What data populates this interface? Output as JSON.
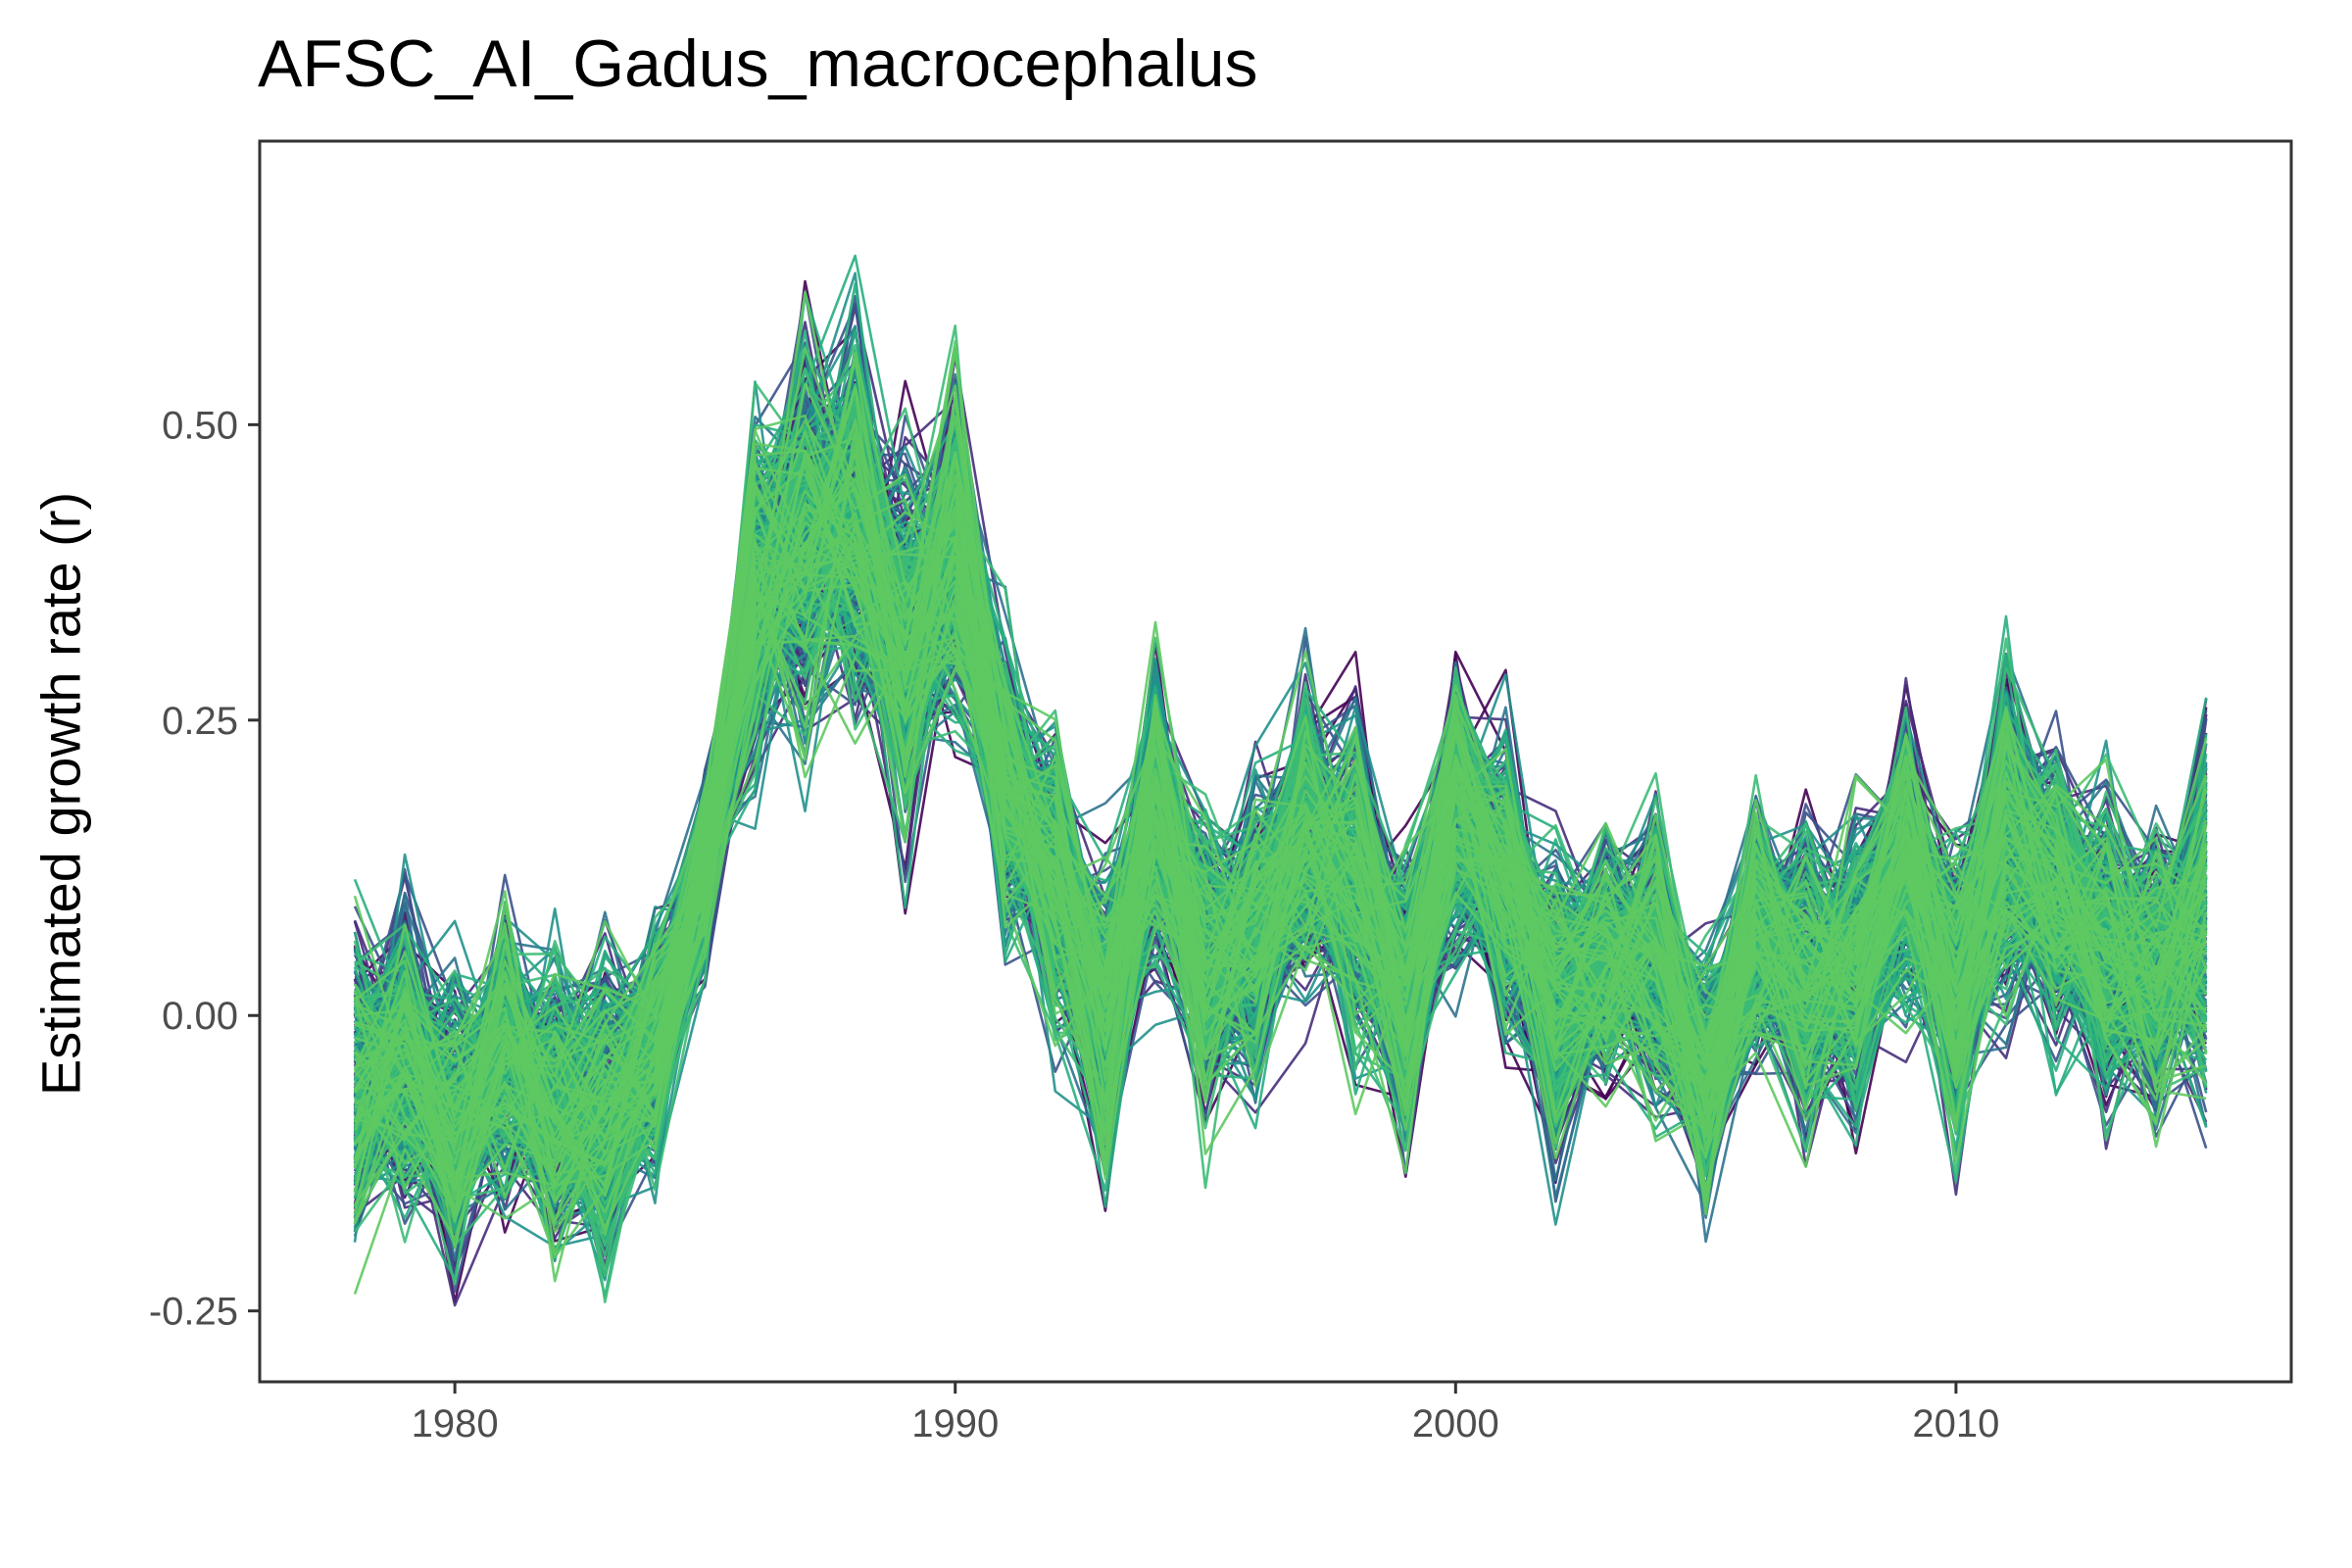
{
  "chart_data": {
    "type": "line",
    "title": "AFSC_AI_Gadus_macrocephalus",
    "xlabel": "",
    "ylabel": "Estimated growth rate (r)",
    "xlim": [
      1976.1,
      2016.7
    ],
    "ylim": [
      -0.31,
      0.74
    ],
    "x_ticks": [
      1980,
      1990,
      2000,
      2010
    ],
    "x_tick_labels": [
      "1980",
      "1990",
      "2000",
      "2010"
    ],
    "y_ticks": [
      -0.25,
      0,
      0.25,
      0.5
    ],
    "y_tick_labels": [
      "-0.25",
      "0.00",
      "0.25",
      "0.50"
    ],
    "grid": false,
    "legend": "none",
    "x": [
      1978,
      1979,
      1980,
      1981,
      1982,
      1983,
      1984,
      1985,
      1986,
      1987,
      1988,
      1989,
      1990,
      1991,
      1992,
      1993,
      1994,
      1995,
      1996,
      1997,
      1998,
      1999,
      2000,
      2001,
      2002,
      2003,
      2004,
      2005,
      2006,
      2007,
      2008,
      2009,
      2010,
      2011,
      2012,
      2013,
      2014,
      2015
    ],
    "mean_trajectory": [
      -0.06,
      -0.04,
      -0.09,
      -0.03,
      -0.08,
      -0.08,
      -0.03,
      0.12,
      0.36,
      0.4,
      0.42,
      0.31,
      0.4,
      0.19,
      0.11,
      0.0,
      0.17,
      0.04,
      0.06,
      0.15,
      0.12,
      0.02,
      0.17,
      0.11,
      0.01,
      0.05,
      0.05,
      -0.06,
      0.07,
      0.03,
      0.04,
      0.13,
      0.02,
      0.15,
      0.1,
      0.06,
      0.03,
      0.08
    ],
    "spread": [
      0.06,
      0.06,
      0.06,
      0.06,
      0.06,
      0.06,
      0.05,
      0.04,
      0.07,
      0.08,
      0.09,
      0.08,
      0.07,
      0.06,
      0.06,
      0.06,
      0.06,
      0.06,
      0.06,
      0.06,
      0.07,
      0.06,
      0.06,
      0.06,
      0.06,
      0.05,
      0.06,
      0.05,
      0.05,
      0.06,
      0.06,
      0.06,
      0.06,
      0.07,
      0.06,
      0.06,
      0.06,
      0.07
    ],
    "n_series": 400,
    "palette": [
      "#440154",
      "#472D7B",
      "#3B528B",
      "#2C728E",
      "#21918C",
      "#28AE80",
      "#3CBB75",
      "#5EC962"
    ]
  }
}
